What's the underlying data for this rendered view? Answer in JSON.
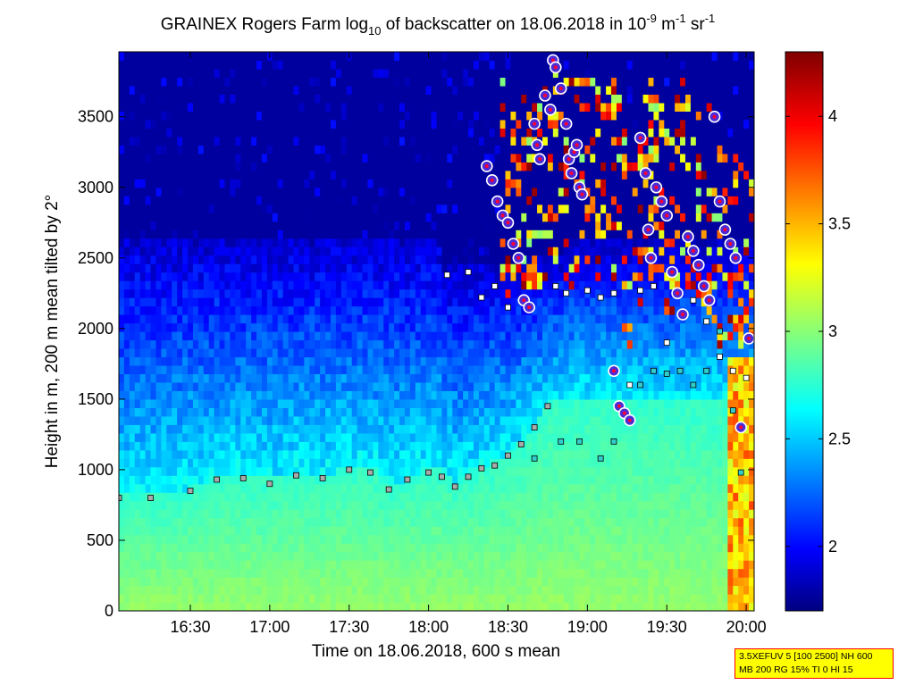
{
  "chart_data": {
    "type": "heatmap",
    "title": {
      "prefix": "GRAINEX Rogers Farm log",
      "log_base": "10",
      "middle": " of backscatter on 18.06.2018 in 10",
      "exp1": "-9",
      "unit1": " m",
      "exp2": "-1",
      "unit2": " sr",
      "exp3": "-1"
    },
    "xlabel": "Time on 18.06.2018, 600 s mean",
    "ylabel": "Height in m, 200 m mean tilted by 2°",
    "x_ticks": [
      "16:30",
      "17:00",
      "17:30",
      "18:00",
      "18:30",
      "19:00",
      "19:30",
      "20:00"
    ],
    "x_tick_minutes": [
      990,
      1020,
      1050,
      1080,
      1110,
      1140,
      1170,
      1200
    ],
    "xlim_minutes": [
      963,
      1203
    ],
    "y_ticks": [
      0,
      500,
      1000,
      1500,
      2000,
      2500,
      3000,
      3500
    ],
    "ylim": [
      0,
      3960
    ],
    "colorbar": {
      "ticks": [
        "2",
        "2.5",
        "3",
        "3.5",
        "4"
      ],
      "tick_values": [
        2,
        2.5,
        3,
        3.5,
        4
      ],
      "range": [
        1.7,
        4.3
      ],
      "colormap": "jet"
    },
    "mixing_layer": {
      "time_min": [
        963,
        975,
        990,
        1000,
        1010,
        1020,
        1030,
        1040,
        1050,
        1058,
        1065,
        1072,
        1080,
        1085,
        1090,
        1095,
        1100,
        1105,
        1110,
        1115,
        1120,
        1125
      ],
      "height_m": [
        800,
        800,
        850,
        930,
        940,
        900,
        960,
        940,
        1000,
        980,
        860,
        930,
        980,
        950,
        880,
        950,
        1010,
        1030,
        1100,
        1180,
        1300,
        1450
      ]
    },
    "upper_layer": {
      "time_min": [
        1120,
        1130,
        1137,
        1145,
        1150,
        1155,
        1160,
        1165,
        1170,
        1175,
        1180,
        1185,
        1190,
        1195,
        1198
      ],
      "height_m": [
        1080,
        1200,
        1200,
        1080,
        1200,
        1400,
        1600,
        1700,
        1680,
        1700,
        1600,
        1700,
        1980,
        1420,
        980
      ]
    },
    "cloud_base": {
      "time_min": [
        1087,
        1095,
        1100,
        1105,
        1110,
        1115,
        1128,
        1132,
        1140,
        1145,
        1150,
        1156,
        1160,
        1165,
        1170,
        1175,
        1180,
        1185,
        1190,
        1195,
        1200
      ],
      "height_m": [
        2380,
        2400,
        2220,
        2300,
        2150,
        2200,
        2300,
        2250,
        2270,
        2220,
        2250,
        1600,
        2270,
        2300,
        1900,
        2250,
        2200,
        2050,
        1800,
        1700,
        1650
      ]
    },
    "cloud_points": {
      "time_min": [
        1102,
        1104,
        1106,
        1108,
        1110,
        1112,
        1114,
        1116,
        1118,
        1120,
        1121,
        1122,
        1124,
        1126,
        1127,
        1128,
        1130,
        1132,
        1133,
        1134,
        1135,
        1136,
        1137,
        1138,
        1150,
        1152,
        1154,
        1156,
        1160,
        1162,
        1163,
        1164,
        1166,
        1168,
        1170,
        1172,
        1174,
        1176,
        1178,
        1180,
        1182,
        1184,
        1186,
        1188,
        1190,
        1192,
        1194,
        1196,
        1198,
        1201
      ],
      "height_m": [
        3150,
        3050,
        2900,
        2800,
        2750,
        2600,
        2500,
        2200,
        2150,
        3450,
        3300,
        3200,
        3650,
        3550,
        3900,
        3850,
        3700,
        3450,
        3200,
        3100,
        3250,
        3300,
        3000,
        2950,
        1700,
        1450,
        1400,
        1350,
        3350,
        3100,
        2700,
        2500,
        3000,
        2900,
        2800,
        2400,
        2250,
        2100,
        2650,
        2550,
        2450,
        2300,
        2200,
        3500,
        2900,
        2700,
        2600,
        2500,
        1300,
        1930
      ]
    }
  },
  "settings": {
    "line1": "3.5XEFUV 5 [100 2500] NH 600",
    "line2": "MB 200 RG 15% TI 0 HI 15"
  },
  "colors": {
    "cloud_marker_fill": "#4b2bd6",
    "cloud_marker_ring": "#ffffff",
    "cloud_marker_core": "#ff0033",
    "layer_marker_stroke": "#000000"
  }
}
